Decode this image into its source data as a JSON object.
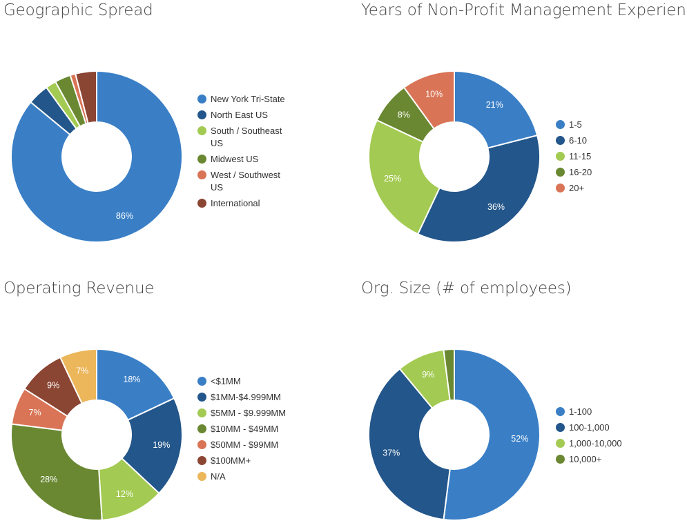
{
  "chart_data": [
    {
      "type": "pie",
      "title": "Geographic Spread",
      "categories": [
        "New York Tri-State",
        "North East US",
        "South / Southeast US",
        "Midwest US",
        "West / Southwest US",
        "International"
      ],
      "values": [
        86,
        4,
        2,
        3,
        1,
        4
      ],
      "data_labels": [
        "86%",
        "",
        "",
        "",
        "",
        ""
      ],
      "colors": [
        "#3a7fc6",
        "#23568a",
        "#a3ca52",
        "#6a8832",
        "#d97456",
        "#8b4533"
      ],
      "legend_position": "right"
    },
    {
      "type": "pie",
      "title": "Years of Non-Profit Management Experience",
      "categories": [
        "1-5",
        "6-10",
        "11-15",
        "16-20",
        "20+"
      ],
      "values": [
        21,
        36,
        25,
        8,
        10
      ],
      "data_labels": [
        "21%",
        "36%",
        "25%",
        "8%",
        "10%"
      ],
      "colors": [
        "#3a7fc6",
        "#23568a",
        "#a3ca52",
        "#6a8832",
        "#d97456"
      ],
      "legend_position": "right"
    },
    {
      "type": "pie",
      "title": "Operating Revenue",
      "categories": [
        "<$1MM",
        "$1MM-$4.999MM",
        "$5MM - $9.999MM",
        "$10MM - $49MM",
        "$50MM - $99MM",
        "$100MM+",
        "N/A"
      ],
      "values": [
        18,
        19,
        12,
        28,
        7,
        9,
        7
      ],
      "data_labels": [
        "18%",
        "19%",
        "12%",
        "28%",
        "7%",
        "9%",
        "7%"
      ],
      "colors": [
        "#3a7fc6",
        "#23568a",
        "#a3ca52",
        "#6a8832",
        "#d97456",
        "#8b4533",
        "#ecb65b"
      ],
      "legend_position": "right"
    },
    {
      "type": "pie",
      "title": "Org. Size (# of employees)",
      "categories": [
        "1-100",
        "100-1,000",
        "1,000-10,000",
        "10,000+"
      ],
      "values": [
        52,
        37,
        9,
        2
      ],
      "data_labels": [
        "52%",
        "37%",
        "9%",
        ""
      ],
      "colors": [
        "#3a7fc6",
        "#23568a",
        "#a3ca52",
        "#6a8832"
      ],
      "legend_position": "right"
    }
  ]
}
